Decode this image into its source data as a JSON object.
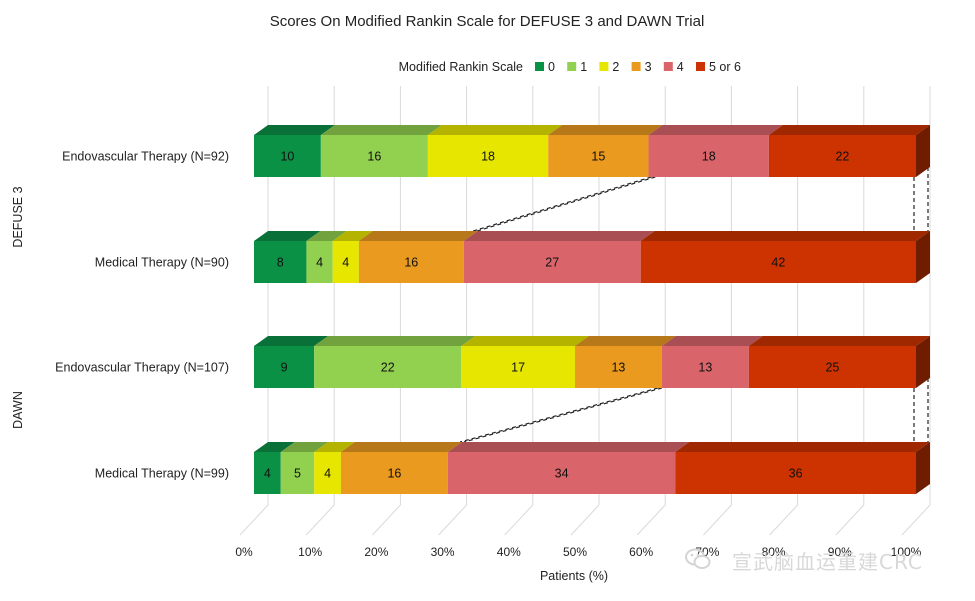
{
  "chart_data": {
    "type": "stacked-bar-horizontal-100",
    "title": "Scores On Modified Rankin Scale for DEFUSE 3 and DAWN Trial",
    "legend_title": "Modified Rankin Scale",
    "legend_position": "top",
    "categories_legend": [
      "0",
      "1",
      "2",
      "3",
      "4",
      "5 or 6"
    ],
    "colors": [
      "#0b9146",
      "#92d050",
      "#e6e600",
      "#e99a1f",
      "#d9656a",
      "#cc3300"
    ],
    "xlabel": "Patients (%)",
    "xlim": [
      0,
      100
    ],
    "xticks": [
      "0%",
      "10%",
      "20%",
      "30%",
      "40%",
      "50%",
      "60%",
      "70%",
      "80%",
      "90%",
      "100%"
    ],
    "groups": [
      {
        "name": "DEFUSE 3",
        "rows": [
          {
            "label": "Endovascular Therapy (N=92)",
            "values": [
              10,
              16,
              18,
              15,
              18,
              22
            ]
          },
          {
            "label": "Medical Therapy (N=90)",
            "values": [
              8,
              4,
              4,
              16,
              27,
              42
            ]
          }
        ]
      },
      {
        "name": "DAWN",
        "rows": [
          {
            "label": "Endovascular Therapy (N=107)",
            "values": [
              9,
              22,
              17,
              13,
              13,
              25
            ]
          },
          {
            "label": "Medical Therapy (N=99)",
            "values": [
              4,
              5,
              4,
              16,
              34,
              36
            ]
          }
        ]
      }
    ],
    "connectors": [
      {
        "group": 0,
        "from_cum_pct": 60,
        "to_cum_pct": 31
      },
      {
        "group": 1,
        "from_cum_pct": 61,
        "to_cum_pct": 29
      }
    ]
  },
  "watermark": {
    "text": "宣武脑血运重建CRC",
    "icon": "wechat-icon"
  }
}
